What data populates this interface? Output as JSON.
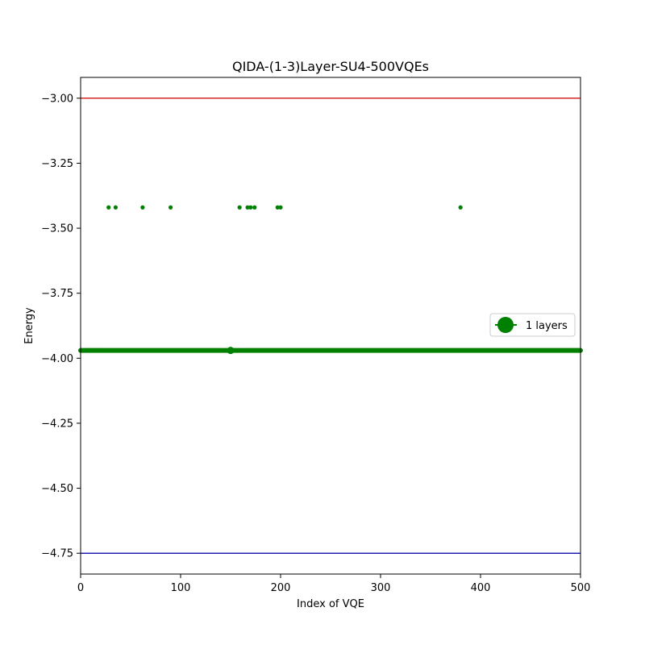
{
  "chart_data": {
    "type": "scatter",
    "title": "QIDA-(1-3)Layer-SU4-500VQEs",
    "xlabel": "Index of VQE",
    "ylabel": "Energy",
    "xlim": [
      0,
      500
    ],
    "ylim": [
      -4.83,
      -2.92
    ],
    "xticks": [
      0,
      100,
      200,
      300,
      400,
      500
    ],
    "xtick_labels": [
      "0",
      "100",
      "200",
      "300",
      "400",
      "500"
    ],
    "yticks": [
      -3.0,
      -3.25,
      -3.5,
      -3.75,
      -4.0,
      -4.25,
      -4.5,
      -4.75
    ],
    "ytick_labels": [
      "−3.00",
      "−3.25",
      "−3.50",
      "−3.75",
      "−4.00",
      "−4.25",
      "−4.50",
      "−4.75"
    ],
    "grid": false,
    "legend": {
      "placement": "center-right",
      "entries": [
        "1 layers"
      ]
    },
    "reference_lines": [
      {
        "y": -3.0,
        "color": "#d62728"
      },
      {
        "y": -4.75,
        "color": "#1f1fb4"
      }
    ],
    "series": [
      {
        "name": "1 layers",
        "color": "#008000",
        "baseline_y": -3.97,
        "baseline_x_range": [
          0,
          500
        ],
        "outliers": [
          {
            "x": 28,
            "y": -3.42
          },
          {
            "x": 35,
            "y": -3.42
          },
          {
            "x": 62,
            "y": -3.42
          },
          {
            "x": 90,
            "y": -3.42
          },
          {
            "x": 159,
            "y": -3.42
          },
          {
            "x": 167,
            "y": -3.42
          },
          {
            "x": 170,
            "y": -3.42
          },
          {
            "x": 174,
            "y": -3.42
          },
          {
            "x": 197,
            "y": -3.42
          },
          {
            "x": 200,
            "y": -3.42
          },
          {
            "x": 380,
            "y": -3.42
          }
        ],
        "highlight": {
          "x": 150,
          "y": -3.97
        }
      }
    ]
  }
}
